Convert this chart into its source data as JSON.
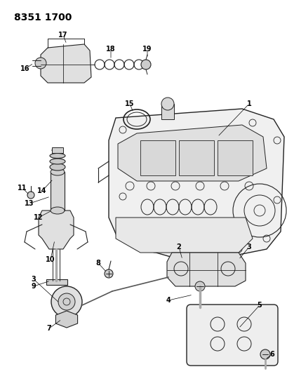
{
  "title": "8351 1700",
  "bg_color": "#ffffff",
  "fig_width": 4.1,
  "fig_height": 5.33,
  "dpi": 100,
  "lw": 0.7,
  "gray": "#222222",
  "light_gray": "#cccccc",
  "mid_gray": "#888888"
}
